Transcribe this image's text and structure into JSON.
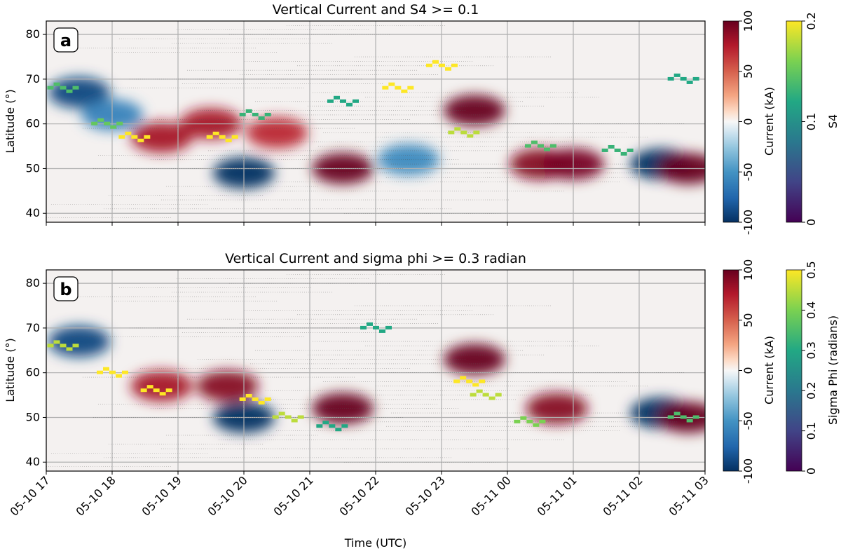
{
  "chart_data": [
    {
      "type": "heatmap",
      "panel_label": "a",
      "title": "Vertical Current and S4 >= 0.1",
      "ylabel": "Latitude (°)",
      "xlabel": "",
      "ylim": [
        38,
        83
      ],
      "y_ticks": [
        "40",
        "50",
        "60",
        "70",
        "80"
      ],
      "x_range": [
        "05-10 17:00",
        "05-11 03:00"
      ],
      "grid": true,
      "colorbars": [
        {
          "label": "Current (kA)",
          "colormap": "RdBu_r",
          "range": [
            -100,
            100
          ],
          "ticks": [
            "-100",
            "-50",
            "0",
            "50",
            "100"
          ]
        },
        {
          "label": "S4",
          "colormap": "viridis",
          "range": [
            0,
            0.2
          ],
          "ticks": [
            "0",
            "0.1",
            "0.2"
          ]
        }
      ],
      "current_features_kA": [
        {
          "time": "17:30",
          "lat": 67,
          "value": -90
        },
        {
          "time": "18:00",
          "lat": 62,
          "value": -60
        },
        {
          "time": "18:45",
          "lat": 57,
          "value": 80
        },
        {
          "time": "19:30",
          "lat": 60,
          "value": 80
        },
        {
          "time": "20:00",
          "lat": 49,
          "value": -100
        },
        {
          "time": "20:30",
          "lat": 58,
          "value": 70
        },
        {
          "time": "21:30",
          "lat": 50,
          "value": 100
        },
        {
          "time": "22:30",
          "lat": 52,
          "value": -55
        },
        {
          "time": "23:30",
          "lat": 63,
          "value": 100
        },
        {
          "time": "00:30",
          "lat": 51,
          "value": 90
        },
        {
          "time": "01:00",
          "lat": 51,
          "value": 95
        },
        {
          "time": "02:20",
          "lat": 51,
          "value": -100
        },
        {
          "time": "02:45",
          "lat": 50,
          "value": 100
        }
      ],
      "scintillation_points": [
        {
          "time": "17:15",
          "lat": 68,
          "value": 0.14
        },
        {
          "time": "17:55",
          "lat": 60,
          "value": 0.15
        },
        {
          "time": "18:20",
          "lat": 57,
          "value": 0.2
        },
        {
          "time": "19:40",
          "lat": 57,
          "value": 0.2
        },
        {
          "time": "20:10",
          "lat": 62,
          "value": 0.13
        },
        {
          "time": "21:30",
          "lat": 65,
          "value": 0.12
        },
        {
          "time": "22:20",
          "lat": 68,
          "value": 0.2
        },
        {
          "time": "23:00",
          "lat": 73,
          "value": 0.2
        },
        {
          "time": "23:20",
          "lat": 58,
          "value": 0.18
        },
        {
          "time": "00:30",
          "lat": 55,
          "value": 0.14
        },
        {
          "time": "01:40",
          "lat": 54,
          "value": 0.13
        },
        {
          "time": "02:40",
          "lat": 70,
          "value": 0.12
        }
      ]
    },
    {
      "type": "heatmap",
      "panel_label": "b",
      "title": "Vertical Current and sigma phi >= 0.3 radian",
      "ylabel": "Latitude (°)",
      "xlabel": "Time (UTC)",
      "ylim": [
        38,
        83
      ],
      "y_ticks": [
        "40",
        "50",
        "60",
        "70",
        "80"
      ],
      "x_ticks": [
        "05-10 17",
        "05-10 18",
        "05-10 19",
        "05-10 20",
        "05-10 21",
        "05-10 22",
        "05-10 23",
        "05-11 00",
        "05-11 01",
        "05-11 02",
        "05-11 03"
      ],
      "grid": true,
      "colorbars": [
        {
          "label": "Current (kA)",
          "colormap": "RdBu_r",
          "range": [
            -100,
            100
          ],
          "ticks": [
            "-100",
            "-50",
            "0",
            "50",
            "100"
          ]
        },
        {
          "label": "Sigma Phi (radians)",
          "colormap": "viridis",
          "range": [
            0,
            0.5
          ],
          "ticks": [
            "0",
            "0.1",
            "0.2",
            "0.3",
            "0.4",
            "0.5"
          ]
        }
      ],
      "current_features_kA": [
        {
          "time": "17:30",
          "lat": 67,
          "value": -90
        },
        {
          "time": "18:45",
          "lat": 57,
          "value": 80
        },
        {
          "time": "19:45",
          "lat": 57,
          "value": 90
        },
        {
          "time": "20:00",
          "lat": 50,
          "value": -100
        },
        {
          "time": "21:30",
          "lat": 52,
          "value": 100
        },
        {
          "time": "23:30",
          "lat": 63,
          "value": 100
        },
        {
          "time": "00:45",
          "lat": 52,
          "value": 90
        },
        {
          "time": "02:20",
          "lat": 51,
          "value": -100
        },
        {
          "time": "02:45",
          "lat": 50,
          "value": 100
        }
      ],
      "scintillation_points": [
        {
          "time": "17:15",
          "lat": 66,
          "value": 0.45
        },
        {
          "time": "18:00",
          "lat": 60,
          "value": 0.5
        },
        {
          "time": "18:40",
          "lat": 56,
          "value": 0.5
        },
        {
          "time": "20:10",
          "lat": 54,
          "value": 0.5
        },
        {
          "time": "20:40",
          "lat": 50,
          "value": 0.45
        },
        {
          "time": "21:20",
          "lat": 48,
          "value": 0.3
        },
        {
          "time": "22:00",
          "lat": 70,
          "value": 0.3
        },
        {
          "time": "23:25",
          "lat": 58,
          "value": 0.5
        },
        {
          "time": "23:40",
          "lat": 55,
          "value": 0.45
        },
        {
          "time": "00:20",
          "lat": 49,
          "value": 0.4
        },
        {
          "time": "02:40",
          "lat": 50,
          "value": 0.35
        }
      ]
    }
  ]
}
